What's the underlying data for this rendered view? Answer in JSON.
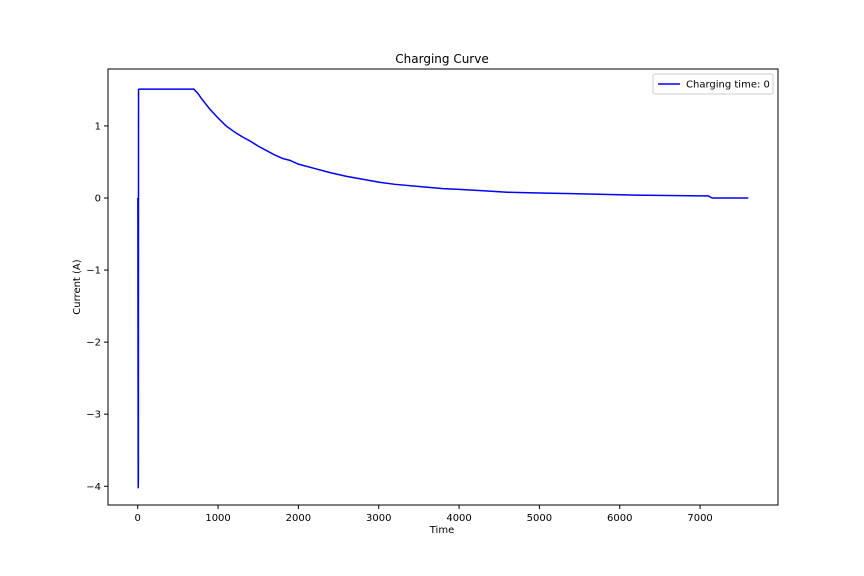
{
  "chart_data": {
    "type": "line",
    "title": "Charging Curve",
    "xlabel": "Time",
    "ylabel": "Current (A)",
    "xlim": [
      -370,
      7970
    ],
    "ylim": [
      -4.26,
      1.79
    ],
    "xticks": [
      0,
      1000,
      2000,
      3000,
      4000,
      5000,
      6000,
      7000
    ],
    "xtick_labels": [
      "0",
      "1000",
      "2000",
      "3000",
      "4000",
      "5000",
      "6000",
      "7000"
    ],
    "yticks": [
      -4,
      -3,
      -2,
      -1,
      0,
      1
    ],
    "ytick_labels": [
      "−4",
      "−3",
      "−2",
      "−1",
      "0",
      "1"
    ],
    "grid": false,
    "legend_position": "upper right",
    "series": [
      {
        "name": "Charging time: 0",
        "color": "#0000ff",
        "x": [
          0,
          2,
          6,
          8,
          10,
          15,
          50,
          200,
          400,
          600,
          700,
          750,
          800,
          850,
          900,
          1000,
          1100,
          1200,
          1300,
          1400,
          1500,
          1600,
          1700,
          1800,
          1900,
          2000,
          2200,
          2400,
          2600,
          2800,
          3000,
          3200,
          3500,
          3800,
          4000,
          4300,
          4600,
          5000,
          5400,
          5800,
          6200,
          6600,
          7000,
          7100,
          7150,
          7300,
          7600
        ],
        "y": [
          0,
          -0.02,
          -4.02,
          -3.9,
          1.5,
          1.51,
          1.51,
          1.51,
          1.51,
          1.51,
          1.51,
          1.45,
          1.37,
          1.3,
          1.23,
          1.11,
          1.0,
          0.92,
          0.85,
          0.79,
          0.72,
          0.66,
          0.6,
          0.55,
          0.52,
          0.47,
          0.41,
          0.35,
          0.3,
          0.26,
          0.22,
          0.19,
          0.16,
          0.13,
          0.12,
          0.1,
          0.08,
          0.07,
          0.06,
          0.05,
          0.04,
          0.035,
          0.03,
          0.03,
          0.0,
          0.0,
          0.0
        ]
      }
    ]
  }
}
